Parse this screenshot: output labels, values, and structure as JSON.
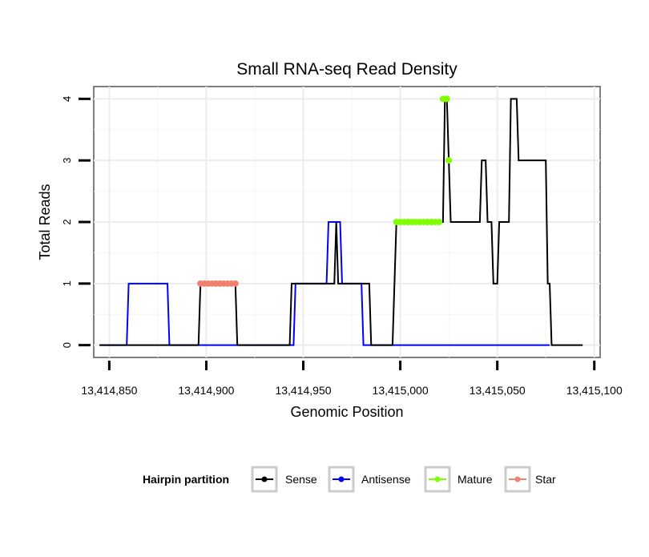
{
  "chart_data": {
    "type": "line",
    "title": "Small RNA-seq Read Density",
    "xlabel": "Genomic Position",
    "ylabel": "Total Reads",
    "xlim": [
      13414842,
      13415103
    ],
    "ylim": [
      -0.2,
      4.2
    ],
    "x_ticks": [
      13414850,
      13414900,
      13414950,
      13415000,
      13415050,
      13415100
    ],
    "x_tick_labels": [
      "13,414,850",
      "13,414,900",
      "13,414,950",
      "13,415,000",
      "13,415,050",
      "13,415,100"
    ],
    "y_ticks": [
      0,
      1,
      2,
      3,
      4
    ],
    "y_tick_labels": [
      "0",
      "1",
      "2",
      "3",
      "4"
    ],
    "grid": true,
    "series": [
      {
        "name": "Sense",
        "color": "#000000",
        "style": "line",
        "x": [
          13414845,
          13414896,
          13414897,
          13414915,
          13414916,
          13414943,
          13414944,
          13414966,
          13414967,
          13414968,
          13414984,
          13414985,
          13414996,
          13414997,
          13414998,
          13415022,
          13415023,
          13415024,
          13415025,
          13415026,
          13415041,
          13415042,
          13415044,
          13415045,
          13415047,
          13415048,
          13415050,
          13415051,
          13415056,
          13415057,
          13415060,
          13415061,
          13415075,
          13415076,
          13415077,
          13415078,
          13415094
        ],
        "y": [
          0,
          0,
          1,
          1,
          0,
          0,
          1,
          1,
          2,
          1,
          1,
          0,
          0,
          1,
          2,
          2,
          4,
          4,
          3,
          2,
          2,
          3,
          3,
          2,
          2,
          1,
          1,
          2,
          2,
          4,
          4,
          3,
          3,
          1,
          1,
          0,
          0
        ]
      },
      {
        "name": "Antisense",
        "color": "#0000ff",
        "style": "line",
        "x": [
          13414845,
          13414859,
          13414860,
          13414880,
          13414881,
          13414945,
          13414946,
          13414962,
          13414963,
          13414969,
          13414970,
          13414980,
          13414981,
          13415077
        ],
        "y": [
          0,
          0,
          1,
          1,
          0,
          0,
          1,
          1,
          2,
          2,
          1,
          1,
          0,
          0
        ]
      },
      {
        "name": "Mature",
        "color": "#7fff00",
        "style": "points",
        "x": [
          13414998,
          13415000,
          13415002,
          13415004,
          13415006,
          13415008,
          13415010,
          13415012,
          13415014,
          13415016,
          13415018,
          13415020,
          13415022,
          13415023,
          13415024,
          13415025
        ],
        "y": [
          2,
          2,
          2,
          2,
          2,
          2,
          2,
          2,
          2,
          2,
          2,
          2,
          4,
          4,
          4,
          3
        ]
      },
      {
        "name": "Star",
        "color": "#f08070",
        "style": "points",
        "x": [
          13414897,
          13414899,
          13414901,
          13414903,
          13414905,
          13414907,
          13414909,
          13414911,
          13414913,
          13414915
        ],
        "y": [
          1,
          1,
          1,
          1,
          1,
          1,
          1,
          1,
          1,
          1
        ]
      }
    ],
    "legend": {
      "title": "Hairpin partition",
      "position": "bottom",
      "items": [
        "Sense",
        "Antisense",
        "Mature",
        "Star"
      ]
    }
  }
}
